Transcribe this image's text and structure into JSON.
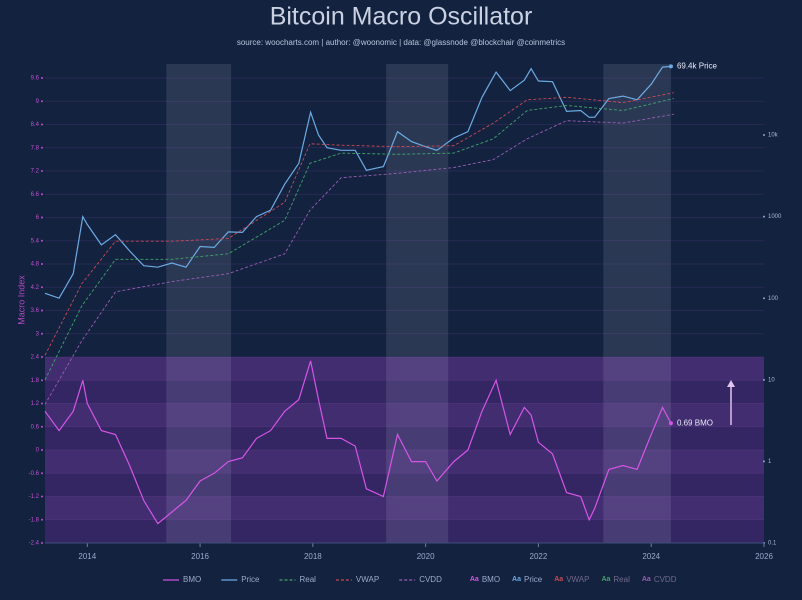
{
  "chart_data": {
    "type": "line",
    "title": "Bitcoin Macro Oscillator",
    "subtitle": "source: woocharts.com | author: @woonomic | data: @glassnode @blockchair @coinmetrics",
    "y_label": "Macro Index",
    "xlim": [
      2013.25,
      2026
    ],
    "xticks": [
      2014,
      2016,
      2018,
      2020,
      2022,
      2024,
      2026
    ],
    "ylim": [
      -2.4,
      9.6
    ],
    "yticks": [
      9.6,
      9,
      8.4,
      7.8,
      7.2,
      6.6,
      6,
      5.4,
      4.8,
      4.2,
      3.6,
      3,
      2.4,
      1.8,
      1.2,
      0.6,
      0,
      -0.6,
      -1.2,
      -1.8,
      -2.4
    ],
    "y2lim": [
      0.1,
      50000
    ],
    "y2scale": "log",
    "y2ticks": [
      0.1,
      1,
      10,
      100,
      1000,
      {
        "value": 10000,
        "label": "10k"
      }
    ],
    "grid": true,
    "oscillator_zone": [
      -2.4,
      2.4
    ],
    "highlight_bands": [
      [
        2015.4,
        2016.55
      ],
      [
        2019.3,
        2020.4
      ],
      [
        2023.15,
        2024.35
      ]
    ],
    "label_toggle_icon": "Aa",
    "series": [
      {
        "name": "BMO",
        "color": "#d455e6",
        "axis": "y",
        "dash": false,
        "end_label": "0.69 BMO",
        "x": [
          2013.25,
          2013.5,
          2013.75,
          2013.92,
          2014.0,
          2014.25,
          2014.5,
          2014.75,
          2015.0,
          2015.25,
          2015.5,
          2015.75,
          2016.0,
          2016.25,
          2016.5,
          2016.75,
          2017.0,
          2017.25,
          2017.5,
          2017.75,
          2017.96,
          2018.1,
          2018.25,
          2018.5,
          2018.75,
          2018.95,
          2019.25,
          2019.5,
          2019.75,
          2020.0,
          2020.2,
          2020.5,
          2020.75,
          2021.0,
          2021.25,
          2021.5,
          2021.75,
          2021.87,
          2022.0,
          2022.25,
          2022.5,
          2022.75,
          2022.9,
          2023.0,
          2023.25,
          2023.5,
          2023.75,
          2024.0,
          2024.2,
          2024.35
        ],
        "values": [
          1.0,
          0.5,
          1.0,
          1.8,
          1.2,
          0.5,
          0.4,
          -0.4,
          -1.3,
          -1.9,
          -1.6,
          -1.3,
          -0.8,
          -0.6,
          -0.3,
          -0.2,
          0.3,
          0.5,
          1.0,
          1.3,
          2.3,
          1.3,
          0.3,
          0.3,
          0.1,
          -1.0,
          -1.2,
          0.4,
          -0.3,
          -0.3,
          -0.8,
          -0.3,
          0.0,
          1.0,
          1.8,
          0.4,
          1.1,
          0.9,
          0.2,
          -0.1,
          -1.1,
          -1.2,
          -1.8,
          -1.5,
          -0.5,
          -0.4,
          -0.5,
          0.4,
          1.1,
          0.69
        ]
      },
      {
        "name": "Price",
        "color": "#6cabe3",
        "axis": "y2",
        "dash": false,
        "end_label": "69.4k Price",
        "x": [
          2013.25,
          2013.5,
          2013.75,
          2013.92,
          2014.0,
          2014.25,
          2014.5,
          2014.75,
          2015.0,
          2015.25,
          2015.5,
          2015.75,
          2016.0,
          2016.25,
          2016.5,
          2016.75,
          2017.0,
          2017.25,
          2017.5,
          2017.75,
          2017.96,
          2018.1,
          2018.25,
          2018.5,
          2018.75,
          2018.95,
          2019.25,
          2019.5,
          2019.75,
          2020.0,
          2020.2,
          2020.5,
          2020.75,
          2021.0,
          2021.25,
          2021.5,
          2021.75,
          2021.87,
          2022.0,
          2022.25,
          2022.5,
          2022.75,
          2022.9,
          2023.0,
          2023.25,
          2023.5,
          2023.75,
          2024.0,
          2024.2,
          2024.35
        ],
        "values": [
          115,
          100,
          200,
          1000,
          800,
          450,
          600,
          380,
          250,
          240,
          270,
          240,
          430,
          420,
          650,
          640,
          1000,
          1200,
          2500,
          4500,
          19000,
          10000,
          7000,
          6500,
          6500,
          3700,
          4100,
          11000,
          8300,
          7200,
          6500,
          9200,
          11000,
          29000,
          59000,
          35000,
          47000,
          65000,
          46000,
          45000,
          19500,
          20000,
          16500,
          16600,
          28000,
          30000,
          27000,
          42000,
          68000,
          69400
        ]
      },
      {
        "name": "Real",
        "color": "#3fa46a",
        "axis": "y2",
        "dash": true,
        "x": [
          2013.25,
          2013.9,
          2014.5,
          2015.5,
          2016.5,
          2017.5,
          2017.95,
          2018.5,
          2019.5,
          2020.5,
          2021.2,
          2021.8,
          2022.5,
          2023.5,
          2024.4
        ],
        "values": [
          10,
          80,
          300,
          300,
          350,
          900,
          4500,
          6000,
          5800,
          6000,
          9000,
          20000,
          23000,
          20000,
          28000
        ]
      },
      {
        "name": "VWAP",
        "color": "#c94a55",
        "axis": "y2",
        "dash": true,
        "x": [
          2013.25,
          2013.9,
          2014.5,
          2015.5,
          2016.5,
          2017.5,
          2017.95,
          2018.5,
          2019.5,
          2020.5,
          2021.2,
          2021.8,
          2022.5,
          2023.5,
          2024.4
        ],
        "values": [
          20,
          150,
          500,
          500,
          540,
          1500,
          7800,
          7500,
          7200,
          7400,
          14000,
          27000,
          29000,
          25000,
          33000
        ]
      },
      {
        "name": "CVDD",
        "color": "#9a5cb4",
        "axis": "y2",
        "dash": true,
        "x": [
          2013.25,
          2013.9,
          2014.5,
          2015.5,
          2016.5,
          2017.5,
          2017.95,
          2018.5,
          2019.5,
          2020.5,
          2021.2,
          2021.8,
          2022.5,
          2023.5,
          2024.4
        ],
        "values": [
          5,
          30,
          120,
          160,
          200,
          350,
          1200,
          3000,
          3400,
          4000,
          5000,
          9000,
          15000,
          14000,
          18000
        ]
      }
    ]
  }
}
